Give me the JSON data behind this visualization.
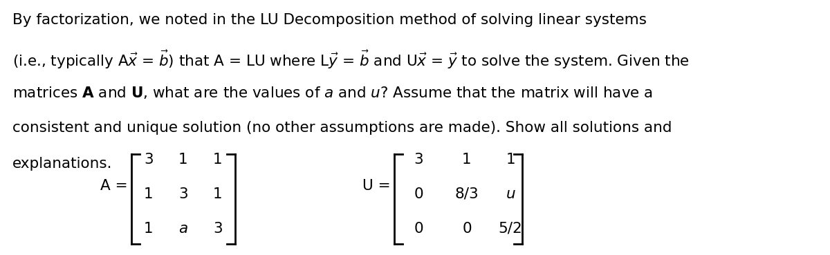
{
  "bg_color": "#ffffff",
  "text_color": "#000000",
  "fig_width": 12.0,
  "fig_height": 3.69,
  "dpi": 100,
  "line1": "By factorization, we noted in the LU Decomposition method of solving linear systems",
  "line2_parts": [
    {
      "text": "(i.e., typically A",
      "style": "normal"
    },
    {
      "text": "x",
      "style": "vec"
    },
    {
      "text": " = ",
      "style": "normal"
    },
    {
      "text": "b",
      "style": "vec"
    },
    {
      "text": ") that A = LU where L",
      "style": "normal"
    },
    {
      "text": "y",
      "style": "vec"
    },
    {
      "text": " = ",
      "style": "normal"
    },
    {
      "text": "b",
      "style": "vec"
    },
    {
      "text": " and U",
      "style": "normal"
    },
    {
      "text": "x",
      "style": "vec"
    },
    {
      "text": " = ",
      "style": "normal"
    },
    {
      "text": "y",
      "style": "vec"
    },
    {
      "text": " to solve the system. Given the",
      "style": "normal"
    }
  ],
  "line3": "matrices A and U, what are the values of a and u? Assume that the matrix will have a",
  "line4": "consistent and unique solution (no other assumptions are made). Show all solutions and",
  "line5": "explanations.",
  "matrix_A": [
    [
      "3",
      "1",
      "1"
    ],
    [
      "1",
      "3",
      "1"
    ],
    [
      "1",
      "a",
      "3"
    ]
  ],
  "matrix_U": [
    [
      "3",
      "1",
      "1"
    ],
    [
      "0",
      "8/3",
      "u"
    ],
    [
      "0",
      "0",
      "5/2"
    ]
  ],
  "font_size": 15.5,
  "matrix_font_size": 15.5
}
